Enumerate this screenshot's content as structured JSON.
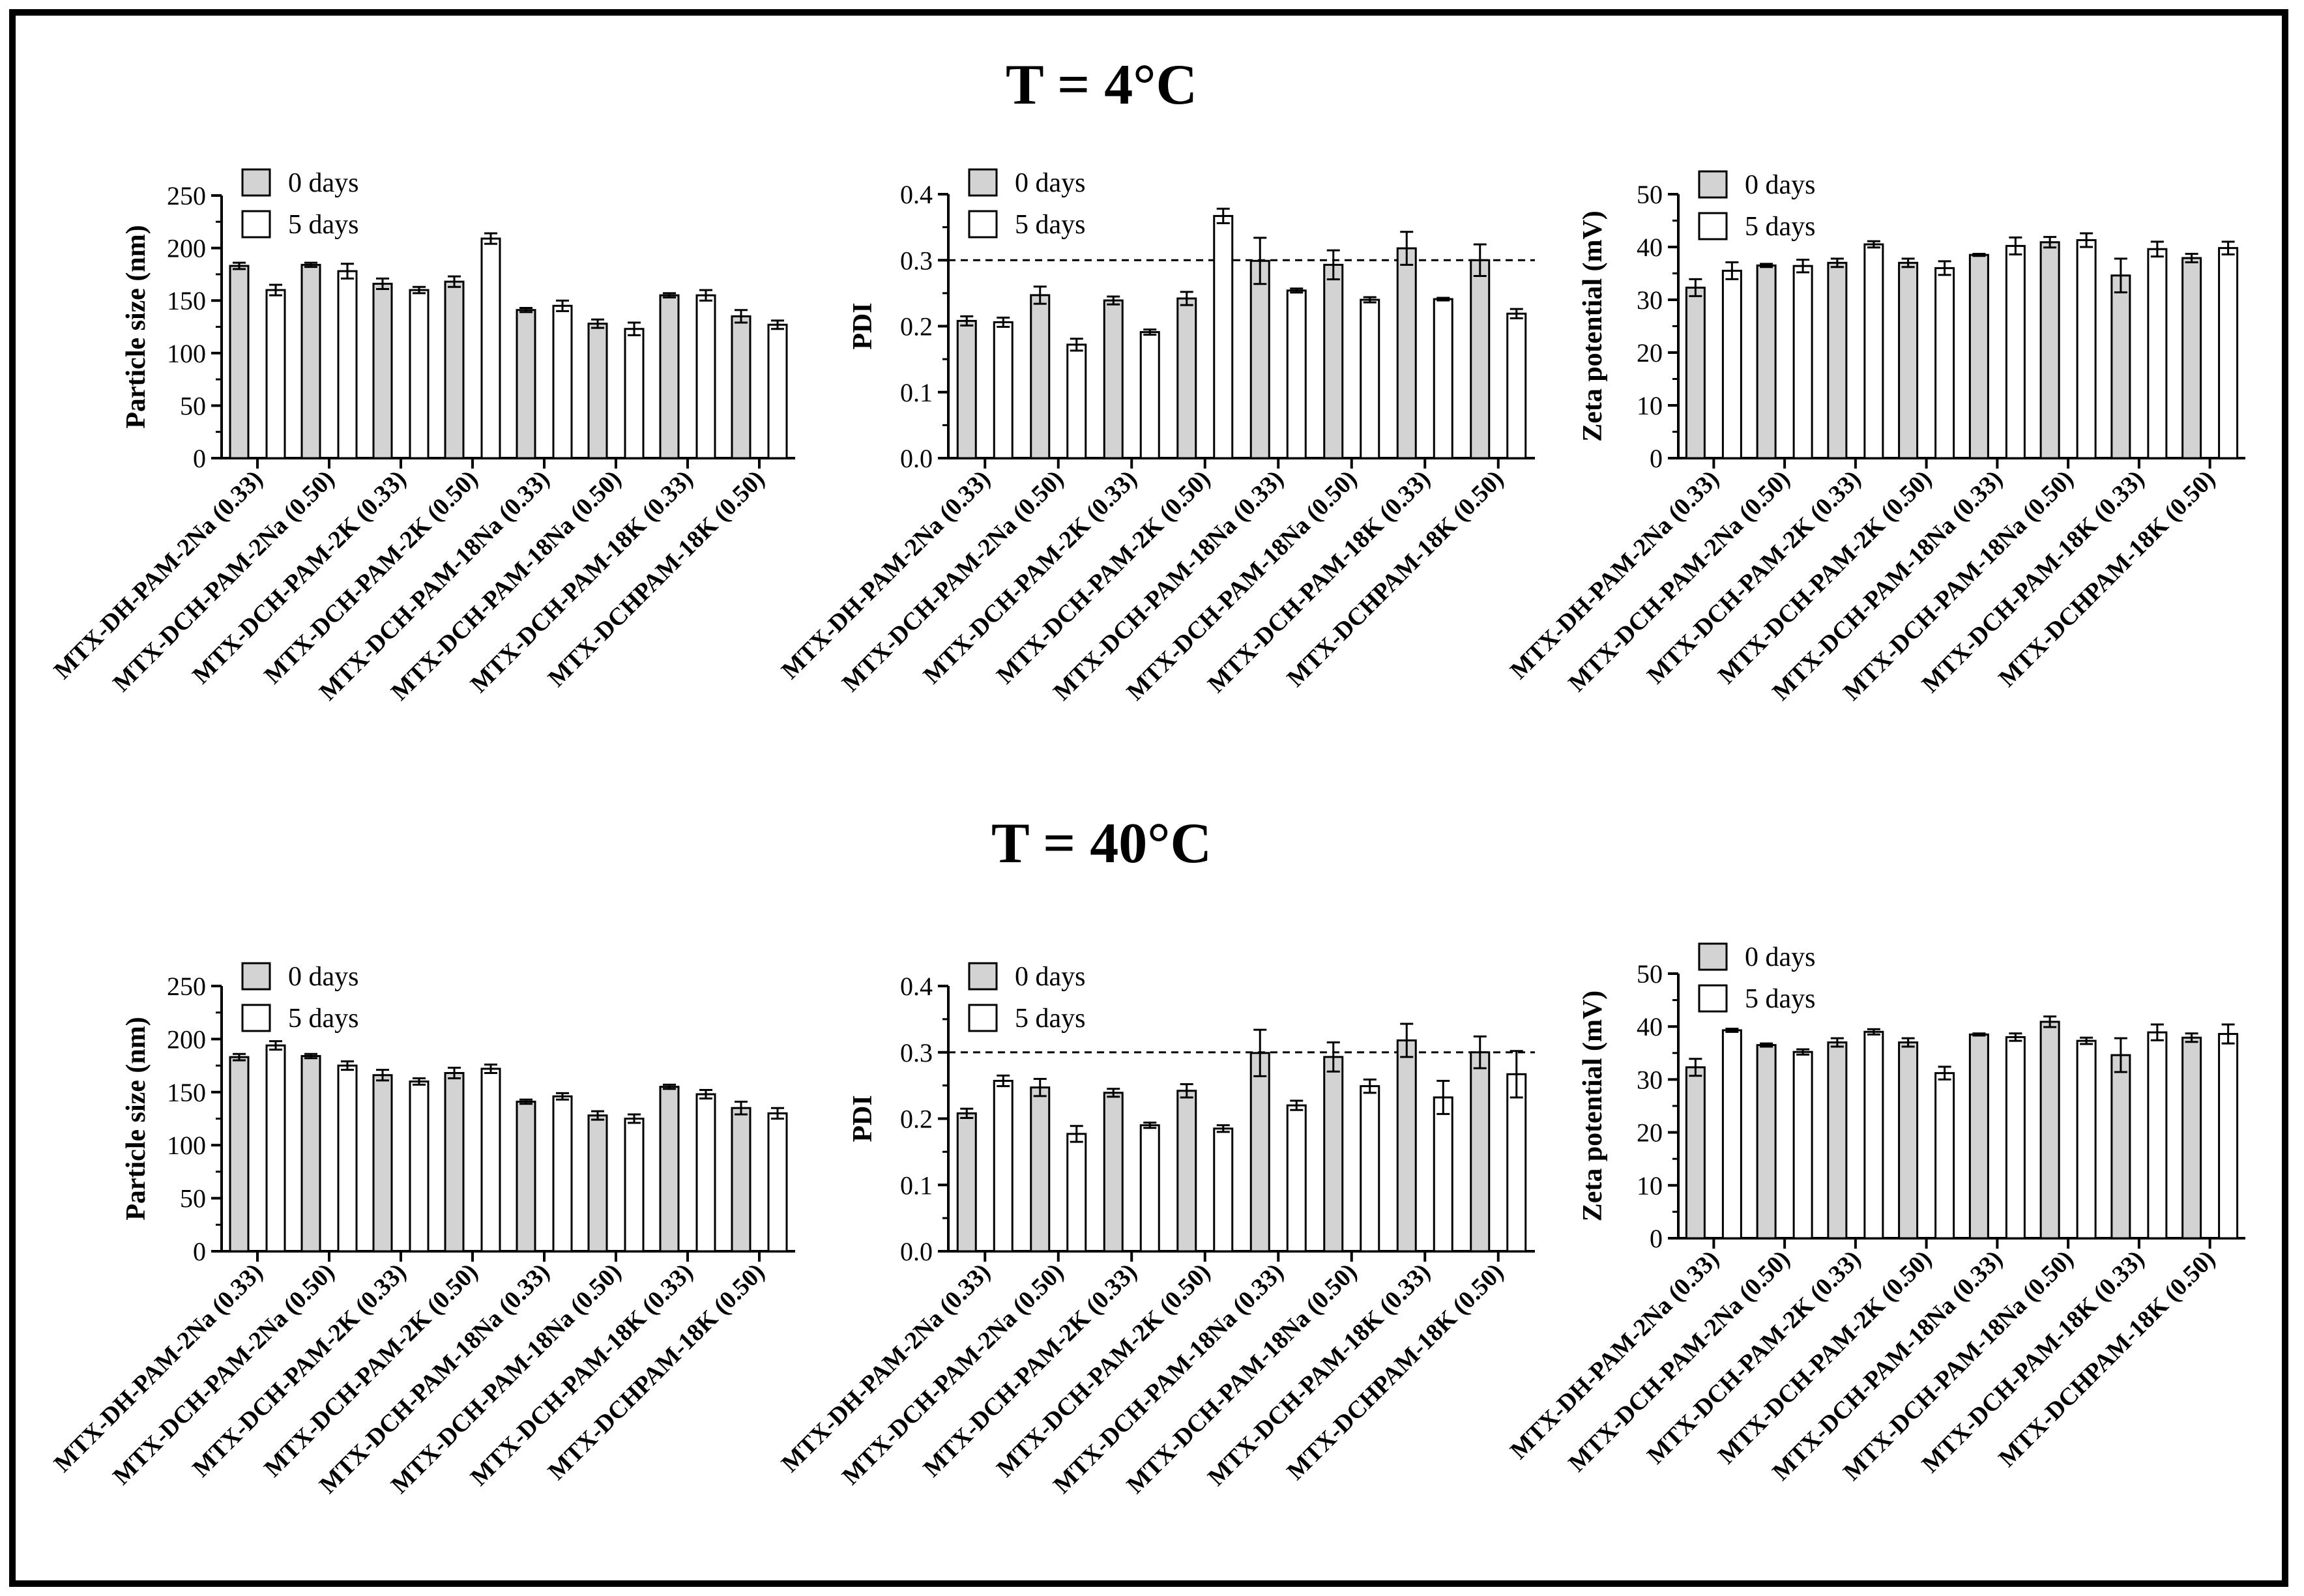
{
  "figure": {
    "section_titles": [
      "T = 4°C",
      "T = 40°C"
    ],
    "colors": {
      "day0": "#d3d3d3",
      "day5": "#ffffff",
      "stroke": "#000000"
    }
  },
  "chart_data": [
    {
      "type": "bar",
      "section": "T = 4°C",
      "ylabel": "Particle size (nm)",
      "ylim": [
        0,
        250
      ],
      "yticks": [
        0,
        50,
        100,
        150,
        200,
        250
      ],
      "categories": [
        "MTX-DH-PAM-2Na (0.33)",
        "MTX-DCH-PAM-2Na (0.50)",
        "MTX-DCH-PAM-2K (0.33)",
        "MTX-DCH-PAM-2K (0.50)",
        "MTX-DCH-PAM-18Na (0.33)",
        "MTX-DCH-PAM-18Na (0.50)",
        "MTX-DCH-PAM-18K (0.33)",
        "MTX-DCHPAM-18K (0.50)"
      ],
      "legend": [
        "0 days",
        "5 days"
      ],
      "series": [
        {
          "name": "0 days",
          "values": [
            183,
            184,
            166,
            168,
            141,
            128,
            155,
            135
          ],
          "errors": [
            3,
            2,
            5,
            5,
            2,
            4,
            2,
            6
          ]
        },
        {
          "name": "5 days",
          "values": [
            160,
            178,
            160,
            209,
            145,
            123,
            155,
            127
          ],
          "errors": [
            5,
            7,
            3,
            5,
            5,
            6,
            5,
            4
          ]
        }
      ]
    },
    {
      "type": "bar",
      "section": "T = 4°C",
      "ylabel": "PDI",
      "ylim": [
        0,
        0.4
      ],
      "yticks": [
        0.0,
        0.1,
        0.2,
        0.3,
        0.4
      ],
      "tick_decimals": 1,
      "refline": 0.3,
      "categories": [
        "MTX-DH-PAM-2Na (0.33)",
        "MTX-DCH-PAM-2Na (0.50)",
        "MTX-DCH-PAM-2K (0.33)",
        "MTX-DCH-PAM-2K (0.50)",
        "MTX-DCH-PAM-18Na (0.33)",
        "MTX-DCH-PAM-18Na (0.50)",
        "MTX-DCH-PAM-18K (0.33)",
        "MTX-DCHPAM-18K (0.50)"
      ],
      "legend": [
        "0 days",
        "5 days"
      ],
      "series": [
        {
          "name": "0 days",
          "values": [
            0.208,
            0.247,
            0.239,
            0.242,
            0.299,
            0.293,
            0.318,
            0.3
          ],
          "errors": [
            0.007,
            0.013,
            0.006,
            0.01,
            0.035,
            0.022,
            0.025,
            0.024
          ]
        },
        {
          "name": "5 days",
          "values": [
            0.206,
            0.172,
            0.191,
            0.367,
            0.254,
            0.24,
            0.241,
            0.219
          ],
          "errors": [
            0.007,
            0.009,
            0.004,
            0.011,
            0.003,
            0.004,
            0.002,
            0.007
          ]
        }
      ]
    },
    {
      "type": "bar",
      "section": "T = 4°C",
      "ylabel": "Zeta potential (mV)",
      "ylim": [
        0,
        50
      ],
      "yticks": [
        0,
        10,
        20,
        30,
        40,
        50
      ],
      "categories": [
        "MTX-DH-PAM-2Na (0.33)",
        "MTX-DCH-PAM-2Na (0.50)",
        "MTX-DCH-PAM-2K (0.33)",
        "MTX-DCH-PAM-2K (0.50)",
        "MTX-DCH-PAM-18Na (0.33)",
        "MTX-DCH-PAM-18Na (0.50)",
        "MTX-DCH-PAM-18K (0.33)",
        "MTX-DCHPAM-18K (0.50)"
      ],
      "legend": [
        "0 days",
        "5 days"
      ],
      "series": [
        {
          "name": "0 days",
          "values": [
            32.3,
            36.5,
            37.0,
            37.0,
            38.5,
            40.9,
            34.6,
            37.9
          ],
          "errors": [
            1.6,
            0.3,
            0.8,
            0.8,
            0.2,
            1.0,
            3.2,
            0.8
          ]
        },
        {
          "name": "5 days",
          "values": [
            35.5,
            36.4,
            40.5,
            36.0,
            40.2,
            41.3,
            39.6,
            39.8
          ],
          "errors": [
            1.6,
            1.2,
            0.6,
            1.3,
            1.6,
            1.3,
            1.4,
            1.2
          ]
        }
      ]
    },
    {
      "type": "bar",
      "section": "T = 40°C",
      "ylabel": "Particle size (nm)",
      "ylim": [
        0,
        250
      ],
      "yticks": [
        0,
        50,
        100,
        150,
        200,
        250
      ],
      "categories": [
        "MTX-DH-PAM-2Na (0.33)",
        "MTX-DCH-PAM-2Na (0.50)",
        "MTX-DCH-PAM-2K (0.33)",
        "MTX-DCH-PAM-2K (0.50)",
        "MTX-DCH-PAM-18Na (0.33)",
        "MTX-DCH-PAM-18Na (0.50)",
        "MTX-DCH-PAM-18K (0.33)",
        "MTX-DCHPAM-18K (0.50)"
      ],
      "legend": [
        "0 days",
        "5 days"
      ],
      "series": [
        {
          "name": "0 days",
          "values": [
            183,
            184,
            166,
            168,
            141,
            128,
            155,
            135
          ],
          "errors": [
            3,
            2,
            5,
            5,
            2,
            4,
            2,
            6
          ]
        },
        {
          "name": "5 days",
          "values": [
            194,
            175,
            160,
            172,
            146,
            125,
            148,
            130
          ],
          "errors": [
            4,
            4,
            3,
            4,
            3,
            4,
            4,
            5
          ]
        }
      ]
    },
    {
      "type": "bar",
      "section": "T = 40°C",
      "ylabel": "PDI",
      "ylim": [
        0,
        0.4
      ],
      "yticks": [
        0.0,
        0.1,
        0.2,
        0.3,
        0.4
      ],
      "tick_decimals": 1,
      "refline": 0.3,
      "categories": [
        "MTX-DH-PAM-2Na (0.33)",
        "MTX-DCH-PAM-2Na (0.50)",
        "MTX-DCH-PAM-2K (0.33)",
        "MTX-DCH-PAM-2K (0.50)",
        "MTX-DCH-PAM-18Na (0.33)",
        "MTX-DCH-PAM-18Na (0.50)",
        "MTX-DCH-PAM-18K (0.33)",
        "MTX-DCHPAM-18K (0.50)"
      ],
      "legend": [
        "0 days",
        "5 days"
      ],
      "series": [
        {
          "name": "0 days",
          "values": [
            0.208,
            0.247,
            0.239,
            0.242,
            0.299,
            0.293,
            0.318,
            0.3
          ],
          "errors": [
            0.007,
            0.013,
            0.006,
            0.01,
            0.035,
            0.022,
            0.025,
            0.024
          ]
        },
        {
          "name": "5 days",
          "values": [
            0.257,
            0.177,
            0.19,
            0.185,
            0.22,
            0.249,
            0.232,
            0.267
          ],
          "errors": [
            0.008,
            0.012,
            0.004,
            0.005,
            0.007,
            0.01,
            0.025,
            0.035
          ]
        }
      ]
    },
    {
      "type": "bar",
      "section": "T = 40°C",
      "ylabel": "Zeta potential (mV)",
      "ylim": [
        0,
        50
      ],
      "yticks": [
        0,
        10,
        20,
        30,
        40,
        50
      ],
      "categories": [
        "MTX-DH-PAM-2Na (0.33)",
        "MTX-DCH-PAM-2Na (0.50)",
        "MTX-DCH-PAM-2K (0.33)",
        "MTX-DCH-PAM-2K (0.50)",
        "MTX-DCH-PAM-18Na (0.33)",
        "MTX-DCH-PAM-18Na (0.50)",
        "MTX-DCH-PAM-18K (0.33)",
        "MTX-DCHPAM-18K (0.50)"
      ],
      "legend": [
        "0 days",
        "5 days"
      ],
      "series": [
        {
          "name": "0 days",
          "values": [
            32.3,
            36.5,
            37.0,
            37.0,
            38.5,
            40.9,
            34.6,
            37.9
          ],
          "errors": [
            1.6,
            0.3,
            0.8,
            0.8,
            0.2,
            1.0,
            3.2,
            0.8
          ]
        },
        {
          "name": "5 days",
          "values": [
            39.3,
            35.2,
            39.0,
            31.2,
            38.0,
            37.3,
            38.9,
            38.6
          ],
          "errors": [
            0.3,
            0.5,
            0.5,
            1.2,
            0.7,
            0.6,
            1.5,
            1.8
          ]
        }
      ]
    }
  ]
}
